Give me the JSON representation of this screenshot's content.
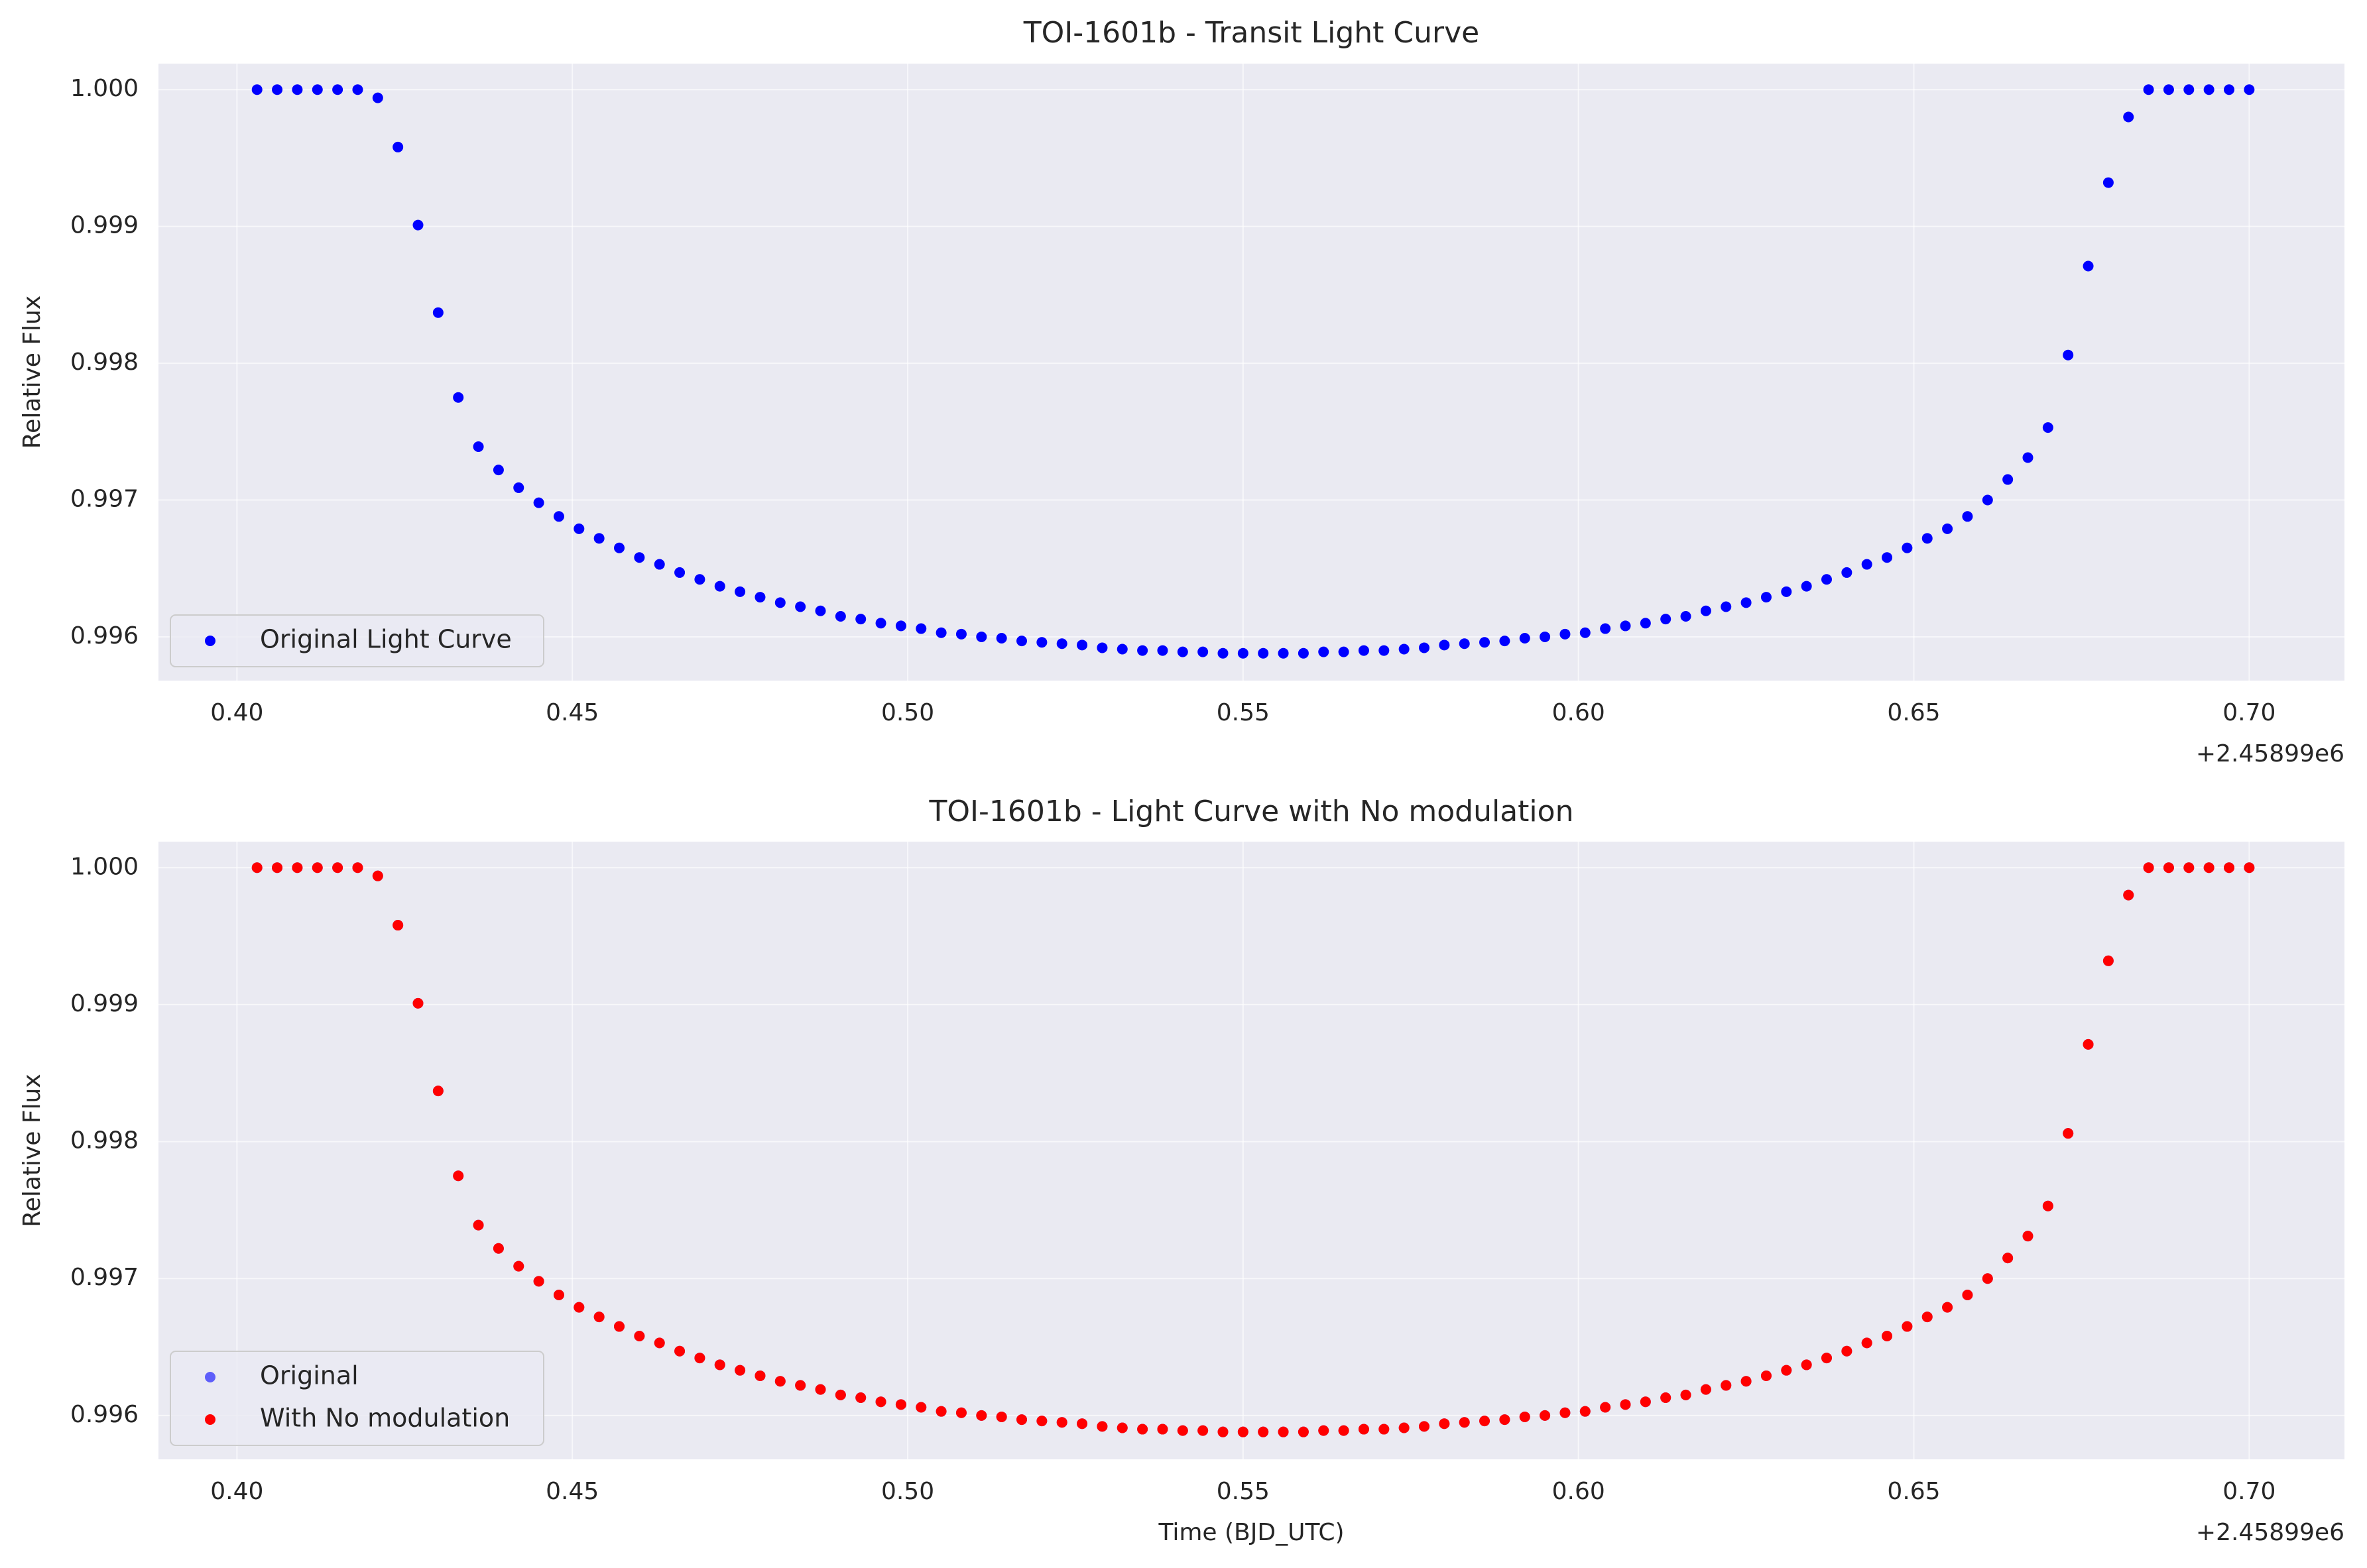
{
  "chart_data": [
    {
      "type": "scatter",
      "title": "TOI-1601b - Transit Light Curve",
      "ylabel": "Relative Flux",
      "x_offset_label": "+2.45899e6",
      "x": [
        0.403,
        0.406,
        0.409,
        0.412,
        0.415,
        0.418,
        0.421,
        0.424,
        0.427,
        0.43,
        0.433,
        0.436,
        0.439,
        0.442,
        0.445,
        0.448,
        0.451,
        0.454,
        0.457,
        0.46,
        0.463,
        0.466,
        0.469,
        0.472,
        0.475,
        0.478,
        0.481,
        0.484,
        0.487,
        0.49,
        0.493,
        0.496,
        0.499,
        0.502,
        0.505,
        0.508,
        0.511,
        0.514,
        0.517,
        0.52,
        0.523,
        0.526,
        0.529,
        0.532,
        0.535,
        0.538,
        0.541,
        0.544,
        0.547,
        0.55,
        0.553,
        0.556,
        0.559,
        0.562,
        0.565,
        0.568,
        0.571,
        0.574,
        0.577,
        0.58,
        0.583,
        0.586,
        0.589,
        0.592,
        0.595,
        0.598,
        0.601,
        0.604,
        0.607,
        0.61,
        0.613,
        0.616,
        0.619,
        0.622,
        0.625,
        0.628,
        0.631,
        0.634,
        0.637,
        0.64,
        0.643,
        0.646,
        0.649,
        0.652,
        0.655,
        0.658,
        0.661,
        0.664,
        0.667,
        0.67,
        0.673,
        0.676,
        0.679,
        0.682,
        0.685,
        0.688,
        0.691,
        0.694,
        0.697,
        0.7
      ],
      "series": [
        {
          "name": "Original Light Curve",
          "color": "#0000ff",
          "values": [
            1,
            1,
            1,
            1,
            1,
            1,
            0.99994,
            0.99958,
            0.99901,
            0.99837,
            0.99775,
            0.99739,
            0.99722,
            0.99709,
            0.99698,
            0.99688,
            0.99679,
            0.99672,
            0.99665,
            0.99658,
            0.99653,
            0.99647,
            0.99642,
            0.99637,
            0.99633,
            0.99629,
            0.99625,
            0.99622,
            0.99619,
            0.99615,
            0.99613,
            0.9961,
            0.99608,
            0.99606,
            0.99603,
            0.99602,
            0.996,
            0.99599,
            0.99597,
            0.99596,
            0.99595,
            0.99594,
            0.99592,
            0.99591,
            0.9959,
            0.9959,
            0.99589,
            0.99589,
            0.99588,
            0.99588,
            0.99588,
            0.99588,
            0.99588,
            0.99589,
            0.99589,
            0.9959,
            0.9959,
            0.99591,
            0.99592,
            0.99594,
            0.99595,
            0.99596,
            0.99597,
            0.99599,
            0.996,
            0.99602,
            0.99603,
            0.99606,
            0.99608,
            0.9961,
            0.99613,
            0.99615,
            0.99619,
            0.99622,
            0.99625,
            0.99629,
            0.99633,
            0.99637,
            0.99642,
            0.99647,
            0.99653,
            0.99658,
            0.99665,
            0.99672,
            0.99679,
            0.99688,
            0.997,
            0.99715,
            0.99731,
            0.99753,
            0.99806,
            0.99871,
            0.99932,
            0.9998,
            1,
            1,
            1,
            1,
            1,
            1
          ]
        }
      ],
      "xlim": [
        0.3883,
        0.7142
      ],
      "ylim": [
        0.99568,
        1.00019
      ],
      "xticks": [
        {
          "value": 0.4,
          "label": "0.40"
        },
        0.45,
        {
          "value": 0.5,
          "label": "0.50"
        },
        0.55,
        {
          "value": 0.6,
          "label": "0.60"
        },
        0.65,
        {
          "value": 0.7,
          "label": "0.70"
        }
      ],
      "yticks": [
        0.996,
        0.997,
        0.998,
        0.999,
        {
          "value": 1,
          "label": "1.000"
        }
      ],
      "grid": true,
      "legend": "lower left"
    },
    {
      "type": "scatter",
      "title": "TOI-1601b - Light Curve with No modulation",
      "xlabel": "Time (BJD_UTC)",
      "ylabel": "Relative Flux",
      "x_offset_label": "+2.45899e6",
      "x": [
        0.403,
        0.406,
        0.409,
        0.412,
        0.415,
        0.418,
        0.421,
        0.424,
        0.427,
        0.43,
        0.433,
        0.436,
        0.439,
        0.442,
        0.445,
        0.448,
        0.451,
        0.454,
        0.457,
        0.46,
        0.463,
        0.466,
        0.469,
        0.472,
        0.475,
        0.478,
        0.481,
        0.484,
        0.487,
        0.49,
        0.493,
        0.496,
        0.499,
        0.502,
        0.505,
        0.508,
        0.511,
        0.514,
        0.517,
        0.52,
        0.523,
        0.526,
        0.529,
        0.532,
        0.535,
        0.538,
        0.541,
        0.544,
        0.547,
        0.55,
        0.553,
        0.556,
        0.559,
        0.562,
        0.565,
        0.568,
        0.571,
        0.574,
        0.577,
        0.58,
        0.583,
        0.586,
        0.589,
        0.592,
        0.595,
        0.598,
        0.601,
        0.604,
        0.607,
        0.61,
        0.613,
        0.616,
        0.619,
        0.622,
        0.625,
        0.628,
        0.631,
        0.634,
        0.637,
        0.64,
        0.643,
        0.646,
        0.649,
        0.652,
        0.655,
        0.658,
        0.661,
        0.664,
        0.667,
        0.67,
        0.673,
        0.676,
        0.679,
        0.682,
        0.685,
        0.688,
        0.691,
        0.694,
        0.697,
        0.7
      ],
      "series": [
        {
          "name": "Original",
          "color": "#0000ff",
          "alpha": 0.6,
          "values": [
            1,
            1,
            1,
            1,
            1,
            1,
            0.99994,
            0.99958,
            0.99901,
            0.99837,
            0.99775,
            0.99739,
            0.99722,
            0.99709,
            0.99698,
            0.99688,
            0.99679,
            0.99672,
            0.99665,
            0.99658,
            0.99653,
            0.99647,
            0.99642,
            0.99637,
            0.99633,
            0.99629,
            0.99625,
            0.99622,
            0.99619,
            0.99615,
            0.99613,
            0.9961,
            0.99608,
            0.99606,
            0.99603,
            0.99602,
            0.996,
            0.99599,
            0.99597,
            0.99596,
            0.99595,
            0.99594,
            0.99592,
            0.99591,
            0.9959,
            0.9959,
            0.99589,
            0.99589,
            0.99588,
            0.99588,
            0.99588,
            0.99588,
            0.99588,
            0.99589,
            0.99589,
            0.9959,
            0.9959,
            0.99591,
            0.99592,
            0.99594,
            0.99595,
            0.99596,
            0.99597,
            0.99599,
            0.996,
            0.99602,
            0.99603,
            0.99606,
            0.99608,
            0.9961,
            0.99613,
            0.99615,
            0.99619,
            0.99622,
            0.99625,
            0.99629,
            0.99633,
            0.99637,
            0.99642,
            0.99647,
            0.99653,
            0.99658,
            0.99665,
            0.99672,
            0.99679,
            0.99688,
            0.997,
            0.99715,
            0.99731,
            0.99753,
            0.99806,
            0.99871,
            0.99932,
            0.9998,
            1,
            1,
            1,
            1,
            1,
            1
          ]
        },
        {
          "name": "With No modulation",
          "color": "#ff0000",
          "values": [
            1,
            1,
            1,
            1,
            1,
            1,
            0.99994,
            0.99958,
            0.99901,
            0.99837,
            0.99775,
            0.99739,
            0.99722,
            0.99709,
            0.99698,
            0.99688,
            0.99679,
            0.99672,
            0.99665,
            0.99658,
            0.99653,
            0.99647,
            0.99642,
            0.99637,
            0.99633,
            0.99629,
            0.99625,
            0.99622,
            0.99619,
            0.99615,
            0.99613,
            0.9961,
            0.99608,
            0.99606,
            0.99603,
            0.99602,
            0.996,
            0.99599,
            0.99597,
            0.99596,
            0.99595,
            0.99594,
            0.99592,
            0.99591,
            0.9959,
            0.9959,
            0.99589,
            0.99589,
            0.99588,
            0.99588,
            0.99588,
            0.99588,
            0.99588,
            0.99589,
            0.99589,
            0.9959,
            0.9959,
            0.99591,
            0.99592,
            0.99594,
            0.99595,
            0.99596,
            0.99597,
            0.99599,
            0.996,
            0.99602,
            0.99603,
            0.99606,
            0.99608,
            0.9961,
            0.99613,
            0.99615,
            0.99619,
            0.99622,
            0.99625,
            0.99629,
            0.99633,
            0.99637,
            0.99642,
            0.99647,
            0.99653,
            0.99658,
            0.99665,
            0.99672,
            0.99679,
            0.99688,
            0.997,
            0.99715,
            0.99731,
            0.99753,
            0.99806,
            0.99871,
            0.99932,
            0.9998,
            1,
            1,
            1,
            1,
            1,
            1
          ]
        }
      ],
      "xlim": [
        0.3883,
        0.7142
      ],
      "ylim": [
        0.99568,
        1.00019
      ],
      "xticks": [
        {
          "value": 0.4,
          "label": "0.40"
        },
        0.45,
        {
          "value": 0.5,
          "label": "0.50"
        },
        0.55,
        {
          "value": 0.6,
          "label": "0.60"
        },
        0.65,
        {
          "value": 0.7,
          "label": "0.70"
        }
      ],
      "yticks": [
        0.996,
        0.997,
        0.998,
        0.999,
        {
          "value": 1,
          "label": "1.000"
        }
      ],
      "grid": true,
      "legend": "lower left"
    }
  ]
}
